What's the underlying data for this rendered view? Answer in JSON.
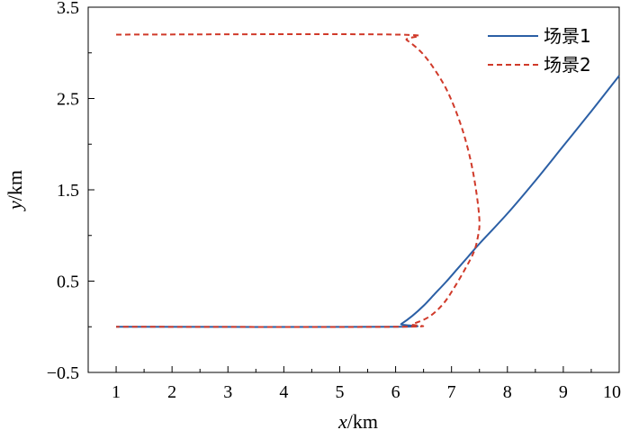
{
  "chart_data": {
    "type": "line",
    "xlabel": {
      "var": "x",
      "unit": "/km"
    },
    "ylabel": {
      "var": "y",
      "unit": "/km"
    },
    "xlim": [
      0.5,
      10
    ],
    "ylim": [
      -0.5,
      3.5
    ],
    "xticks": [
      "1",
      "2",
      "3",
      "4",
      "5",
      "6",
      "7",
      "8",
      "9",
      "10"
    ],
    "yticks": [
      "−0.5",
      "0.5",
      "1.5",
      "2.5",
      "3.5"
    ],
    "grid": false,
    "legend_position": "top-right",
    "series": [
      {
        "name": "场景1",
        "color": "#2b5fa5",
        "dash": "solid",
        "points": [
          [
            1,
            0
          ],
          [
            6,
            0
          ],
          [
            6.1,
            0.03
          ],
          [
            6.3,
            0.12
          ],
          [
            6.5,
            0.23
          ],
          [
            6.7,
            0.36
          ],
          [
            6.9,
            0.49
          ],
          [
            7.1,
            0.63
          ],
          [
            7.3,
            0.77
          ],
          [
            7.5,
            0.91
          ],
          [
            8,
            1.24
          ],
          [
            8.5,
            1.6
          ],
          [
            9,
            1.98
          ],
          [
            9.5,
            2.36
          ],
          [
            10,
            2.75
          ]
        ]
      },
      {
        "name": "场景2",
        "color": "#d03a2a",
        "dash": "dashed",
        "points": [
          [
            1,
            3.2
          ],
          [
            6,
            3.2
          ],
          [
            6.2,
            3.14
          ],
          [
            6.5,
            2.98
          ],
          [
            6.8,
            2.72
          ],
          [
            7,
            2.48
          ],
          [
            7.2,
            2.15
          ],
          [
            7.35,
            1.8
          ],
          [
            7.45,
            1.45
          ],
          [
            7.5,
            1.15
          ],
          [
            7.47,
            0.98
          ],
          [
            7.4,
            0.82
          ],
          [
            7.25,
            0.64
          ],
          [
            7.05,
            0.43
          ],
          [
            6.85,
            0.25
          ],
          [
            6.6,
            0.11
          ],
          [
            6.3,
            0.03
          ],
          [
            6.05,
            0
          ],
          [
            1,
            0
          ]
        ]
      }
    ]
  }
}
